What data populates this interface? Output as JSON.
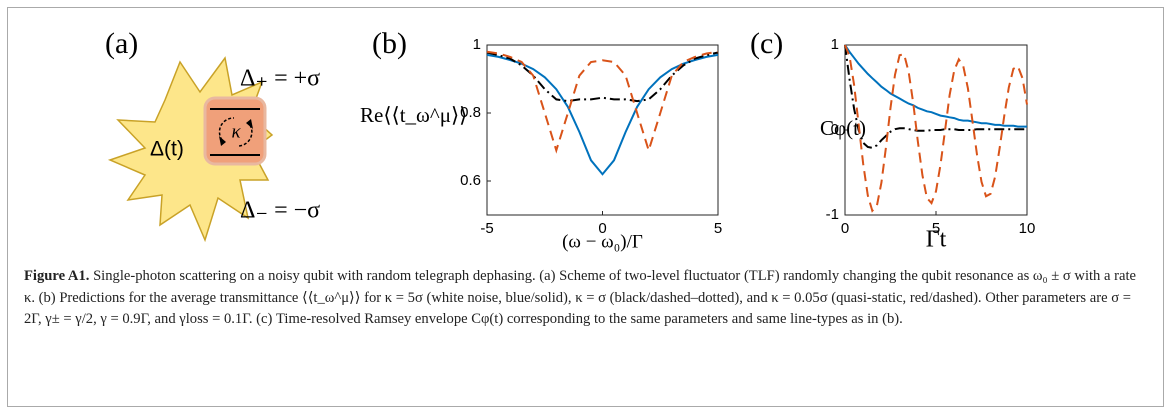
{
  "scheme": {
    "panel_label": "(a)",
    "delta_t": "Δ(t)",
    "kappa": "κ",
    "delta_plus": "Δ₊ = +σ",
    "delta_minus": "Δ₋ = −σ"
  },
  "chart_data": [
    {
      "type": "line",
      "panel_label": "(b)",
      "ylabel": "Re⟨⟨t_ω^μ⟩⟩",
      "xlabel": "(ω − ω₀)/Γ",
      "x": [
        -5,
        -4.5,
        -4,
        -3.5,
        -3,
        -2.5,
        -2,
        -1.5,
        -1,
        -0.5,
        0,
        0.5,
        1,
        1.5,
        2,
        2.5,
        3,
        3.5,
        4,
        4.5,
        5
      ],
      "series": [
        {
          "color": "#0072bd",
          "dash": "solid",
          "values": [
            0.971,
            0.965,
            0.956,
            0.945,
            0.929,
            0.905,
            0.87,
            0.818,
            0.744,
            0.661,
            0.62,
            0.661,
            0.744,
            0.818,
            0.87,
            0.905,
            0.929,
            0.945,
            0.956,
            0.965,
            0.971
          ]
        },
        {
          "color": "#000000",
          "dash": "dashdot",
          "values": [
            0.978,
            0.97,
            0.96,
            0.94,
            0.91,
            0.87,
            0.84,
            0.835,
            0.84,
            0.84,
            0.845,
            0.84,
            0.84,
            0.835,
            0.84,
            0.87,
            0.91,
            0.94,
            0.96,
            0.97,
            0.978
          ]
        },
        {
          "color": "#d95319",
          "dash": "dashed",
          "values": [
            0.98,
            0.975,
            0.965,
            0.95,
            0.91,
            0.8,
            0.69,
            0.8,
            0.91,
            0.95,
            0.955,
            0.95,
            0.91,
            0.8,
            0.69,
            0.8,
            0.91,
            0.95,
            0.965,
            0.975,
            0.98
          ]
        }
      ],
      "xlim": [
        -5,
        5
      ],
      "ylim": [
        0.5,
        1
      ],
      "xticks": [
        -5,
        0,
        5
      ],
      "yticks": [
        0.6,
        0.8,
        1
      ]
    },
    {
      "type": "line",
      "panel_label": "(c)",
      "ylabel": "Cφ(t)",
      "xlabel": "Γt",
      "x": [
        0,
        0.25,
        0.5,
        0.75,
        1,
        1.25,
        1.5,
        1.75,
        2,
        2.25,
        2.5,
        2.75,
        3,
        3.25,
        3.5,
        3.75,
        4,
        4.25,
        4.5,
        4.75,
        5,
        5.25,
        5.5,
        5.75,
        6,
        6.25,
        6.5,
        6.75,
        7,
        7.25,
        7.5,
        7.75,
        8,
        8.25,
        8.5,
        8.75,
        9,
        9.25,
        9.5,
        9.75,
        10
      ],
      "series": [
        {
          "color": "#0072bd",
          "dash": "solid",
          "values": [
            1,
            0.92,
            0.85,
            0.78,
            0.72,
            0.66,
            0.61,
            0.56,
            0.51,
            0.47,
            0.43,
            0.4,
            0.37,
            0.34,
            0.31,
            0.29,
            0.26,
            0.24,
            0.22,
            0.21,
            0.19,
            0.17,
            0.16,
            0.15,
            0.14,
            0.12,
            0.11,
            0.11,
            0.1,
            0.09,
            0.08,
            0.08,
            0.07,
            0.06,
            0.06,
            0.05,
            0.05,
            0.05,
            0.04,
            0.04,
            0.04
          ]
        },
        {
          "color": "#000000",
          "dash": "dashdot",
          "values": [
            1,
            0.6,
            0.25,
            0,
            -0.15,
            -0.2,
            -0.21,
            -0.18,
            -0.12,
            -0.07,
            -0.02,
            0.01,
            0.02,
            0.02,
            0.01,
            0,
            -0.01,
            -0.01,
            -0.01,
            0,
            0,
            0,
            0.01,
            0.01,
            0.01,
            0,
            0,
            0,
            0,
            0.01,
            0.01,
            0.01,
            0.01,
            0.01,
            0.01,
            0.01,
            0.01,
            0.01,
            0.01,
            0.01,
            0.01
          ]
        },
        {
          "color": "#d95319",
          "dash": "dashed",
          "values": [
            1,
            0.87,
            0.53,
            0.07,
            -0.4,
            -0.77,
            -0.95,
            -0.89,
            -0.62,
            -0.2,
            0.26,
            0.65,
            0.88,
            0.89,
            0.68,
            0.31,
            -0.13,
            -0.53,
            -0.8,
            -0.86,
            -0.72,
            -0.41,
            0,
            0.41,
            0.7,
            0.83,
            0.75,
            0.49,
            0.11,
            -0.29,
            -0.61,
            -0.78,
            -0.75,
            -0.55,
            -0.21,
            0.17,
            0.5,
            0.72,
            0.75,
            0.61,
            0.3
          ]
        }
      ],
      "xlim": [
        0,
        10
      ],
      "ylim": [
        -1,
        1
      ],
      "xticks": [
        0,
        5,
        10
      ],
      "yticks": [
        -1,
        0,
        1
      ]
    }
  ],
  "caption": {
    "label": "Figure A1.",
    "text": "Single-photon scattering on a noisy qubit with random telegraph dephasing. (a) Scheme of two-level fluctuator (TLF) randomly changing the qubit resonance as ω₀ ± σ with a rate κ. (b) Predictions for the average transmittance ⟨⟨t_ω^μ⟩⟩ for κ = 5σ (white noise, blue/solid), κ = σ (black/dashed–dotted), and κ = 0.05σ (quasi-static, red/dashed). Other parameters are σ = 2Γ, γ± = γ/2, γ = 0.9Γ, and γloss = 0.1Γ. (c) Time-resolved Ramsey envelope Cφ(t) corresponding to the same parameters and same line-types as in (b)."
  }
}
